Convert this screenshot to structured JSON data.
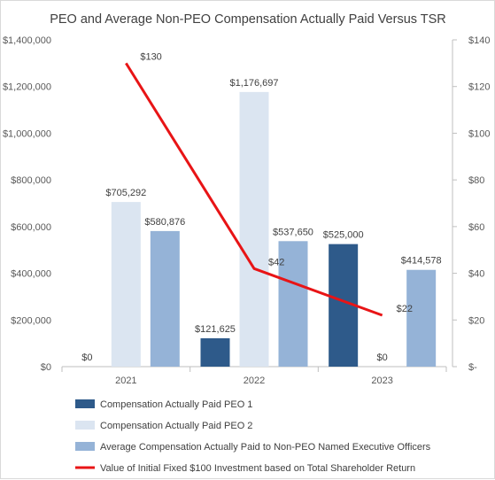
{
  "chart_data": {
    "type": "bar",
    "title": "PEO and Average Non-PEO Compensation Actually Paid Versus TSR",
    "categories": [
      "2021",
      "2022",
      "2023"
    ],
    "series": [
      {
        "name": "Compensation Actually Paid PEO 1",
        "kind": "bar",
        "axis": "left",
        "color": "#2e5a8a",
        "values": [
          0,
          121625,
          525000
        ],
        "labels": [
          "$0",
          "$121,625",
          "$525,000"
        ]
      },
      {
        "name": "Compensation Actually Paid PEO 2",
        "kind": "bar",
        "axis": "left",
        "color": "#dbe5f1",
        "values": [
          705292,
          1176697,
          0
        ],
        "labels": [
          "$705,292",
          "$1,176,697",
          "$0"
        ]
      },
      {
        "name": "Average Compensation Actually Paid to Non-PEO Named Executive Officers",
        "kind": "bar",
        "axis": "left",
        "color": "#95b3d7",
        "values": [
          580876,
          537650,
          414578
        ],
        "labels": [
          "$580,876",
          "$537,650",
          "$414,578"
        ]
      },
      {
        "name": "Value of Initial Fixed $100 Investment based on Total Shareholder Return",
        "kind": "line",
        "axis": "right",
        "color": "#e81416",
        "values": [
          130,
          42,
          22
        ],
        "labels": [
          "$130",
          "$42",
          "$22"
        ]
      }
    ],
    "y_left": {
      "min": 0,
      "max": 1400000,
      "ticks": [
        "$0",
        "$200,000",
        "$400,000",
        "$600,000",
        "$800,000",
        "$1,000,000",
        "$1,200,000",
        "$1,400,000"
      ]
    },
    "y_right": {
      "min": 0,
      "max": 140,
      "ticks": [
        "$-",
        "$20",
        "$40",
        "$60",
        "$80",
        "$100",
        "$120",
        "$140"
      ]
    },
    "grid": false,
    "legend_position": "bottom"
  }
}
